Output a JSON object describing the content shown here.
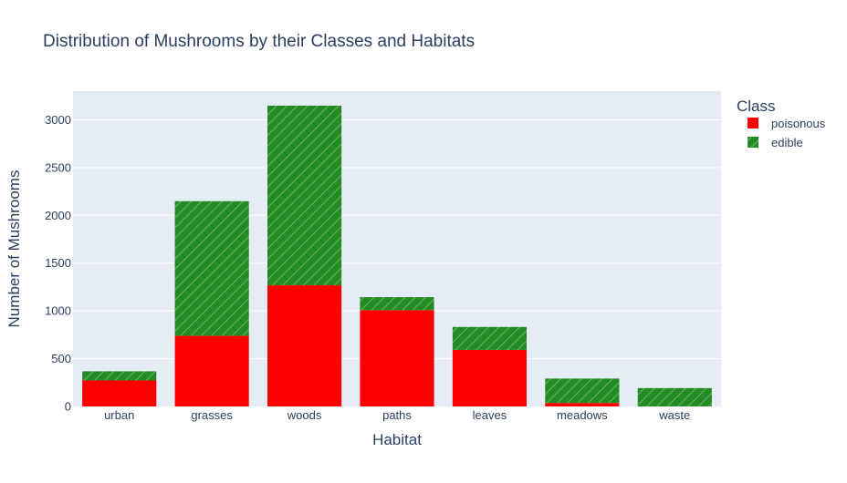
{
  "chart_data": {
    "type": "bar",
    "stacked": true,
    "title": "Distribution of Mushrooms by their Classes and Habitats",
    "xlabel": "Habitat",
    "ylabel": "Number of Mushrooms",
    "categories": [
      "urban",
      "grasses",
      "woods",
      "paths",
      "leaves",
      "meadows",
      "waste"
    ],
    "series": [
      {
        "name": "poisonous",
        "values": [
          272,
          740,
          1268,
          1008,
          592,
          36,
          0
        ],
        "color": "#ff0000",
        "pattern": "solid"
      },
      {
        "name": "edible",
        "values": [
          96,
          1408,
          1880,
          136,
          240,
          256,
          192
        ],
        "color": "#228b22",
        "pattern": "diagonal-hatch"
      }
    ],
    "ylim": [
      0,
      3300
    ],
    "yticks": [
      0,
      500,
      1000,
      1500,
      2000,
      2500,
      3000
    ],
    "grid": true,
    "legend": {
      "title": "Class",
      "placement": "top-right"
    },
    "plot_background": "#e5ecf6"
  }
}
